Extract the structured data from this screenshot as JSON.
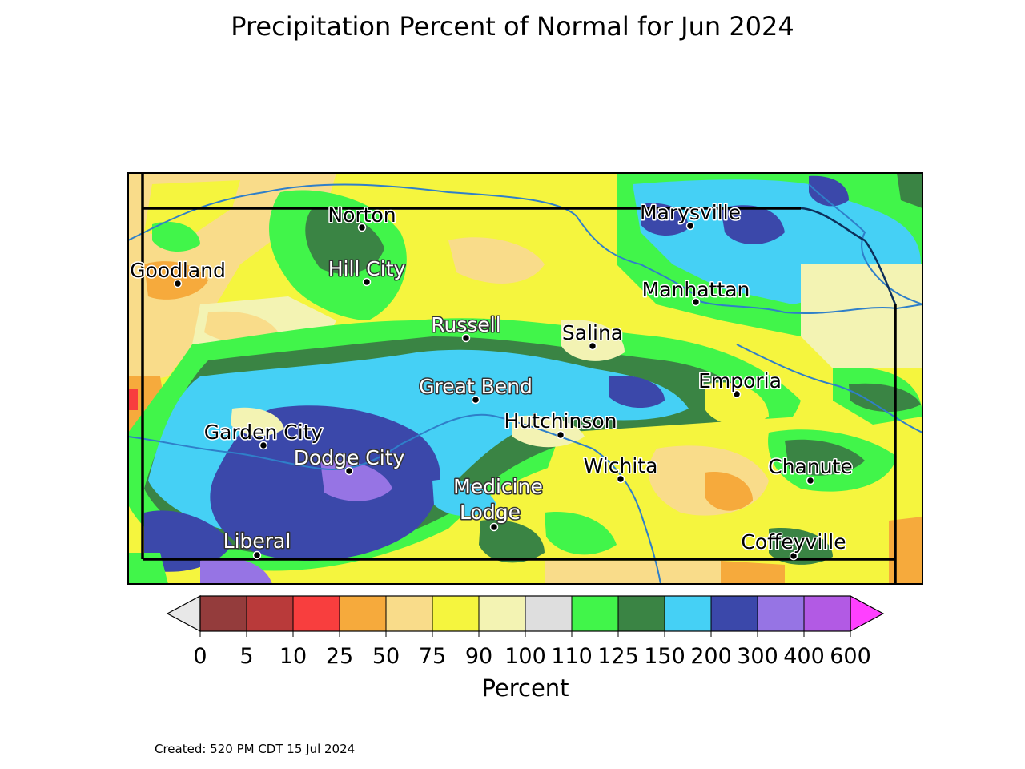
{
  "title": "Precipitation Percent of Normal for Jun 2024",
  "created": "Created: 520 PM CDT 15 Jul 2024",
  "colorbar": {
    "label": "Percent",
    "ticks": [
      "0",
      "5",
      "10",
      "25",
      "50",
      "75",
      "90",
      "100",
      "110",
      "125",
      "150",
      "200",
      "300",
      "400",
      "600"
    ],
    "under_color": "#e8e8e8",
    "over_color": "#ff40ff",
    "colors": [
      "#943c3c",
      "#b93a3a",
      "#f83e3e",
      "#f6aa3c",
      "#f9dc8a",
      "#f5f53e",
      "#f3f3b3",
      "#dedede",
      "#41f54a",
      "#3a8444",
      "#45d0f5",
      "#3b48aa",
      "#9674e4",
      "#b25ae4"
    ]
  },
  "cities": [
    {
      "name": "Norton",
      "label_color": "#000000"
    },
    {
      "name": "Marysville",
      "label_color": "#000000"
    },
    {
      "name": "Goodland",
      "label_color": "#000000"
    },
    {
      "name": "Hill City",
      "label_color": "#ffffff"
    },
    {
      "name": "Manhattan",
      "label_color": "#000000"
    },
    {
      "name": "Russell",
      "label_color": "#ffffff"
    },
    {
      "name": "Salina",
      "label_color": "#000000"
    },
    {
      "name": "Great Bend",
      "label_color": "#ffffff"
    },
    {
      "name": "Emporia",
      "label_color": "#000000"
    },
    {
      "name": "Hutchinson",
      "label_color": "#000000"
    },
    {
      "name": "Garden City",
      "label_color": "#000000"
    },
    {
      "name": "Dodge City",
      "label_color": "#ffffff"
    },
    {
      "name": "Wichita",
      "label_color": "#000000"
    },
    {
      "name": "Chanute",
      "label_color": "#000000"
    },
    {
      "name": "Medicine",
      "label_color": "#ffffff"
    },
    {
      "name": "Lodge",
      "label_color": "#ffffff"
    },
    {
      "name": "Liberal",
      "label_color": "#ffffff"
    },
    {
      "name": "Coffeyville",
      "label_color": "#000000"
    }
  ]
}
